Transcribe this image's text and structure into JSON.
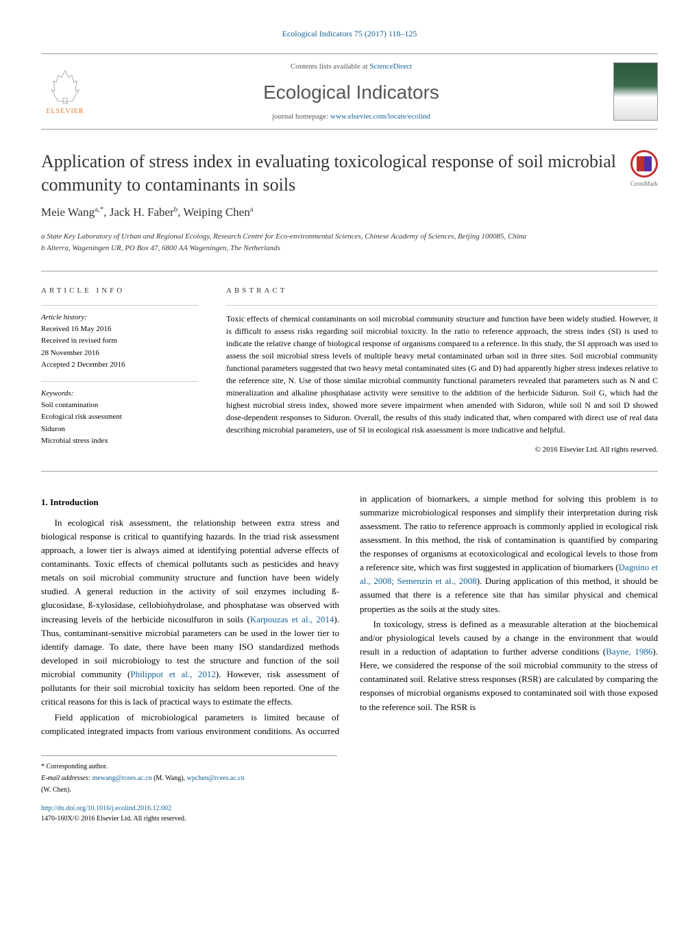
{
  "journal_header": "Ecological Indicators 75 (2017) 118–125",
  "banner": {
    "contents_text": "Contents lists available at ",
    "contents_link": "ScienceDirect",
    "journal_name": "Ecological Indicators",
    "homepage_label": "journal homepage: ",
    "homepage_url": "www.elsevier.com/locate/ecolind",
    "publisher_name": "ELSEVIER"
  },
  "crossmark_label": "CrossMark",
  "article": {
    "title": "Application of stress index in evaluating toxicological response of soil microbial community to contaminants in soils",
    "authors_html": "Meie Wang<sup>a,*</sup>, Jack H. Faber<sup>b</sup>, Weiping Chen<sup>a</sup>",
    "affiliations": [
      "a State Key Laboratory of Urban and Regional Ecology, Research Centre for Eco-environmental Sciences, Chinese Academy of Sciences, Beijing 100085, China",
      "b Alterra, Wageningen UR, PO Box 47, 6800 AA Wageningen, The Netherlands"
    ]
  },
  "info": {
    "heading": "ARTICLE INFO",
    "history_label": "Article history:",
    "history": [
      "Received 16 May 2016",
      "Received in revised form",
      "28 November 2016",
      "Accepted 2 December 2016"
    ],
    "keywords_label": "Keywords:",
    "keywords": [
      "Soil contamination",
      "Ecological risk assessment",
      "Siduron",
      "Microbial stress index"
    ]
  },
  "abstract": {
    "heading": "ABSTRACT",
    "text": "Toxic effects of chemical contaminants on soil microbial community structure and function have been widely studied. However, it is difficult to assess risks regarding soil microbial toxicity. In the ratio to reference approach, the stress index (SI) is used to indicate the relative change of biological response of organisms compared to a reference. In this study, the SI approach was used to assess the soil microbial stress levels of multiple heavy metal contaminated urban soil in three sites. Soil microbial community functional parameters suggested that two heavy metal contaminated sites (G and D) had apparently higher stress indexes relative to the reference site, N. Use of those similar microbial community functional parameters revealed that parameters such as N and C mineralization and alkaline phosphatase activity were sensitive to the addition of the herbicide Siduron. Soil G, which had the highest microbial stress index, showed more severe impairment when amended with Siduron, while soil N and soil D showed dose-dependent responses to Siduron. Overall, the results of this study indicated that, when compared with direct use of real data describing microbial parameters, use of SI in ecological risk assessment is more indicative and helpful.",
    "copyright": "© 2016 Elsevier Ltd. All rights reserved."
  },
  "body": {
    "section_heading": "1. Introduction",
    "p1": "In ecological risk assessment, the relationship between extra stress and biological response is critical to quantifying hazards. In the triad risk assessment approach, a lower tier is always aimed at identifying potential adverse effects of contaminants. Toxic effects of chemical pollutants such as pesticides and heavy metals on soil microbial community structure and function have been widely studied. A general reduction in the activity of soil enzymes including ß-glucosidase, ß-xylosidase, cellobiohydrolase, and phosphatase was observed with increasing levels of the herbicide nicosulfuron in soils (",
    "cite1": "Karpouzas et al., 2014",
    "p1b": "). Thus, contaminant-sensitive microbial parameters can be used in the lower tier to identify damage. To date, there have been many ISO standardized methods developed in soil microbiology to test the structure and function of the soil microbial community (",
    "cite2": "Philippot et al., 2012",
    "p1c": "). However, risk assessment of pollutants for their soil microbial toxicity has seldom been reported. One of the critical reasons for this is lack of practical ways to estimate the effects.",
    "p2": "Field application of microbiological parameters is limited because of complicated integrated impacts from various environment conditions. As occurred in application of biomarkers, a simple method for solving this problem is to summarize microbiological responses and simplify their interpretation during risk assessment. The ratio to reference approach is commonly applied in ecological risk assessment. In this method, the risk of contamination is quantified by comparing the responses of organisms at ecotoxicological and ecological levels to those from a reference site, which was first suggested in application of biomarkers (",
    "cite3": "Dagnino et al., 2008; Semenzin et al., 2008",
    "p2b": "). During application of this method, it should be assumed that there is a reference site that has similar physical and chemical properties as the soils at the study sites.",
    "p3a": "In toxicology, stress is defined as a measurable alteration at the biochemical and/or physiological levels caused by a change in the environment that would result in a reduction of adaptation to further adverse conditions (",
    "cite4": "Bayne, 1986",
    "p3b": "). Here, we considered the response of the soil microbial community to the stress of contaminated soil. Relative stress responses (RSR) are calculated by comparing the responses of microbial organisms exposed to contaminated soil with those exposed to the reference soil. The RSR is"
  },
  "footnote": {
    "corr_label": "* Corresponding author.",
    "email_label": "E-mail addresses: ",
    "email1": "mewang@rcees.ac.cn",
    "name1": " (M. Wang), ",
    "email2": "wpchen@rcees.ac.cn",
    "name2": "(W. Chen)."
  },
  "doi": {
    "url": "http://dx.doi.org/10.1016/j.ecolind.2016.12.002",
    "issn_line": "1470-160X/© 2016 Elsevier Ltd. All rights reserved."
  }
}
